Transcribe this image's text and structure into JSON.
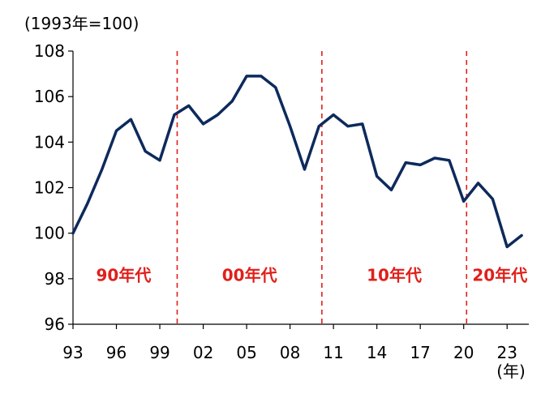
{
  "chart_data": {
    "type": "line",
    "title": "",
    "ylabel": "(1993年=100)",
    "xlabel": "(年)",
    "ylim": [
      96,
      108
    ],
    "yticks": [
      "96",
      "98",
      "100",
      "102",
      "104",
      "106",
      "108"
    ],
    "xlim": [
      1993,
      2024.5
    ],
    "xticks": [
      {
        "year": 1993,
        "label": "93"
      },
      {
        "year": 1996,
        "label": "96"
      },
      {
        "year": 1999,
        "label": "99"
      },
      {
        "year": 2002,
        "label": "02"
      },
      {
        "year": 2005,
        "label": "05"
      },
      {
        "year": 2008,
        "label": "08"
      },
      {
        "year": 2011,
        "label": "11"
      },
      {
        "year": 2014,
        "label": "14"
      },
      {
        "year": 2017,
        "label": "17"
      },
      {
        "year": 2020,
        "label": "20"
      },
      {
        "year": 2023,
        "label": "23"
      }
    ],
    "grid": false,
    "line_color": "#0d2a5c",
    "divider_color": "#e0201b",
    "dividers": [
      2000.2,
      2010.2,
      2020.2
    ],
    "decade_labels": [
      {
        "text": "90年代",
        "year": 1996.5,
        "value": 97.9
      },
      {
        "text": "00年代",
        "year": 2005.2,
        "value": 97.9
      },
      {
        "text": "10年代",
        "year": 2015.2,
        "value": 97.9
      },
      {
        "text": "20年代",
        "year": 2022.5,
        "value": 97.9
      }
    ],
    "series": [
      {
        "x": [
          1993,
          1994,
          1995,
          1996,
          1997,
          1998,
          1999,
          2000,
          2001,
          2002,
          2003,
          2004,
          2005,
          2006,
          2007,
          2008,
          2009,
          2010,
          2011,
          2012,
          2013,
          2014,
          2015,
          2016,
          2017,
          2018,
          2019,
          2020,
          2021,
          2022,
          2023,
          2024
        ],
        "values": [
          100.0,
          101.3,
          102.8,
          104.5,
          105.0,
          103.6,
          103.2,
          105.2,
          105.6,
          104.8,
          105.2,
          105.8,
          106.9,
          106.9,
          106.4,
          104.7,
          102.8,
          104.7,
          105.2,
          104.7,
          104.8,
          102.5,
          101.9,
          103.1,
          103.0,
          103.3,
          103.2,
          101.4,
          102.2,
          101.5,
          99.4,
          99.9
        ]
      }
    ]
  }
}
